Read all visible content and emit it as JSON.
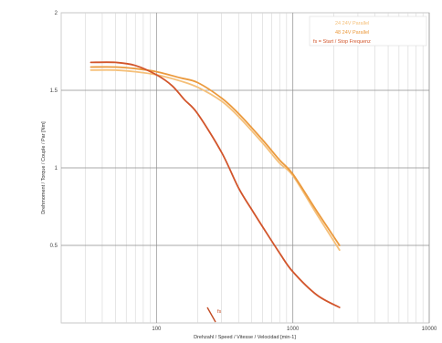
{
  "chart_data": {
    "type": "line",
    "xscale": "log",
    "xlim": [
      20,
      10000
    ],
    "ylim": [
      0,
      2
    ],
    "grid": true,
    "xlabel": "Drehzahl / Speed / Vitesse / Velocidad [min-1]",
    "ylabel": "Drehmoment / Torque / Couple / Par [Nm]",
    "xticks": [
      "100",
      "1000",
      "10000"
    ],
    "yticks": [
      "0.5",
      "1",
      "1.5",
      "2"
    ],
    "legend_position": "top-right",
    "series": [
      {
        "name": "24 24V Parallel",
        "color": "#f5c07a",
        "x": [
          33,
          50,
          70,
          100,
          150,
          200,
          300,
          400,
          600,
          800,
          1000,
          1500,
          2200
        ],
        "y": [
          1.63,
          1.63,
          1.62,
          1.6,
          1.56,
          1.52,
          1.43,
          1.33,
          1.16,
          1.03,
          0.95,
          0.7,
          0.47
        ]
      },
      {
        "name": "48 24V Parallel",
        "color": "#eb9a3e",
        "x": [
          33,
          50,
          70,
          100,
          150,
          200,
          300,
          400,
          600,
          800,
          1000,
          1500,
          2200
        ],
        "y": [
          1.65,
          1.65,
          1.64,
          1.62,
          1.58,
          1.55,
          1.45,
          1.35,
          1.18,
          1.05,
          0.96,
          0.72,
          0.5
        ]
      },
      {
        "name": "fs = Start / Stop Frequenz",
        "color": "#d2552b",
        "x": [
          33,
          50,
          70,
          100,
          130,
          160,
          200,
          300,
          400,
          500,
          600,
          800,
          1000,
          1500,
          2200
        ],
        "y": [
          1.68,
          1.68,
          1.66,
          1.6,
          1.53,
          1.44,
          1.35,
          1.1,
          0.87,
          0.73,
          0.62,
          0.45,
          0.33,
          0.18,
          0.1
        ]
      }
    ],
    "annotations": [
      "fs"
    ]
  }
}
